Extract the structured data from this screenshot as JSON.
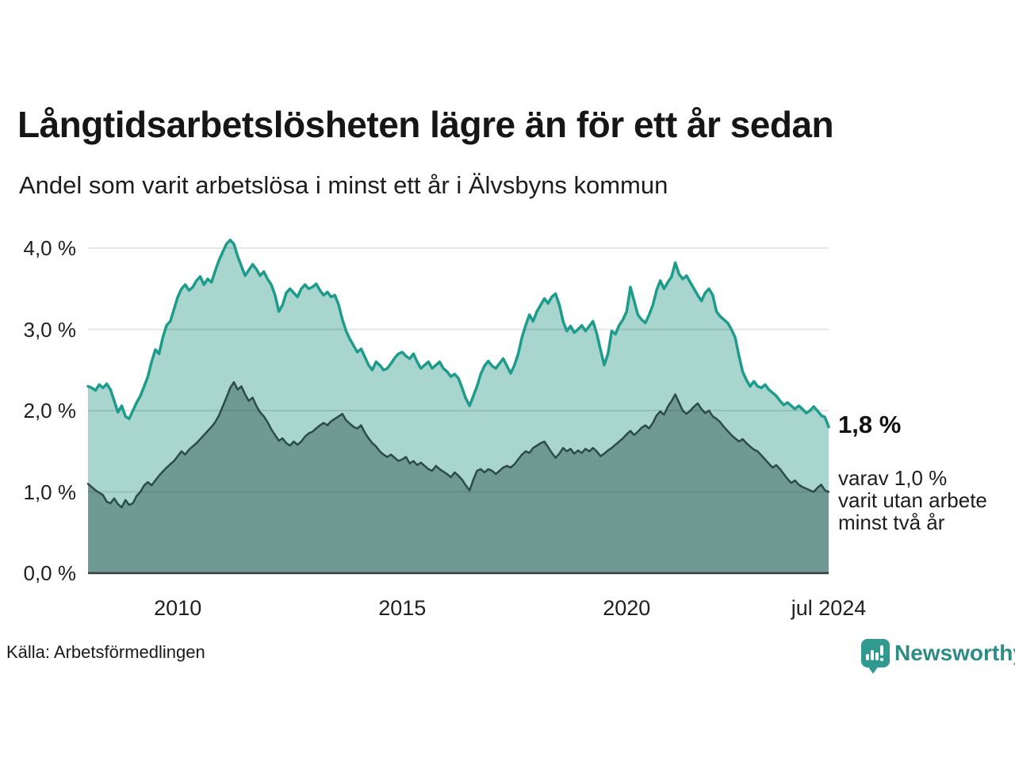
{
  "header": {
    "title": "Långtidsarbetslösheten lägre än för ett år sedan",
    "subtitle": "Andel som varit arbetslösa i minst ett år i Älvsbyns kommun"
  },
  "annotations": {
    "latest_total_label": "1,8 %",
    "latest_sub_lines": [
      "varav 1,0 %",
      "varit utan arbete",
      "minst två år"
    ]
  },
  "source": "Källa: Arbetsförmedlingen",
  "logo": {
    "text": "Newsworthy",
    "icon": "bar-chart-speech-bubble-icon",
    "icon_color": "#319a90",
    "text_color": "#2d8c85"
  },
  "colors": {
    "series_total_line": "#1e9c8b",
    "series_total_fill": "#a8d5ce",
    "series_two_years_line": "#2d4b47",
    "series_two_years_fill": "#6f9a94",
    "gridline": "rgba(0,0,0,0.10)",
    "axis_line": "#3b3b3b",
    "text": "#1a1a1a"
  },
  "chart_data": {
    "type": "area",
    "title": "Långtidsarbetslösheten lägre än för ett år sedan",
    "subtitle": "Andel som varit arbetslösa i minst ett år i Älvsbyns kommun",
    "xlabel": "",
    "ylabel": "",
    "x_unit": "year (monthly points)",
    "x_start": 2008.0,
    "x_end": 2024.5,
    "x_step": 0.0833333,
    "ylim": [
      0,
      4.3
    ],
    "grid": "horizontal",
    "legend_position": "none",
    "y_ticks": [
      {
        "value": 0,
        "label": "0,0 %"
      },
      {
        "value": 1,
        "label": "1,0 %"
      },
      {
        "value": 2,
        "label": "2,0 %"
      },
      {
        "value": 3,
        "label": "3,0 %"
      },
      {
        "value": 4,
        "label": "4,0 %"
      }
    ],
    "x_ticks": [
      {
        "value": 2010,
        "label": "2010"
      },
      {
        "value": 2015,
        "label": "2015"
      },
      {
        "value": 2020,
        "label": "2020"
      },
      {
        "value": 2024.5,
        "label": "jul 2024"
      }
    ],
    "series": [
      {
        "name": "Andel arbetslösa minst ett år",
        "latest_value": 1.8,
        "latest_label": "1,8 %",
        "line_color": "#1e9c8b",
        "fill_color": "#a8d5ce",
        "line_width": 3.5,
        "values": [
          2.3,
          2.28,
          2.25,
          2.32,
          2.28,
          2.33,
          2.26,
          2.12,
          1.98,
          2.06,
          1.93,
          1.9,
          2.0,
          2.1,
          2.18,
          2.3,
          2.42,
          2.6,
          2.75,
          2.7,
          2.9,
          3.05,
          3.1,
          3.25,
          3.4,
          3.5,
          3.55,
          3.48,
          3.52,
          3.6,
          3.65,
          3.55,
          3.62,
          3.58,
          3.72,
          3.85,
          3.95,
          4.05,
          4.1,
          4.05,
          3.9,
          3.78,
          3.66,
          3.73,
          3.8,
          3.74,
          3.66,
          3.71,
          3.62,
          3.55,
          3.42,
          3.22,
          3.3,
          3.45,
          3.5,
          3.45,
          3.4,
          3.5,
          3.55,
          3.5,
          3.52,
          3.56,
          3.48,
          3.42,
          3.46,
          3.4,
          3.42,
          3.3,
          3.12,
          2.98,
          2.88,
          2.8,
          2.72,
          2.76,
          2.66,
          2.56,
          2.5,
          2.6,
          2.56,
          2.5,
          2.52,
          2.58,
          2.65,
          2.7,
          2.72,
          2.67,
          2.64,
          2.7,
          2.6,
          2.52,
          2.56,
          2.6,
          2.52,
          2.56,
          2.6,
          2.52,
          2.48,
          2.42,
          2.45,
          2.4,
          2.28,
          2.15,
          2.06,
          2.18,
          2.3,
          2.45,
          2.55,
          2.61,
          2.55,
          2.52,
          2.58,
          2.64,
          2.55,
          2.46,
          2.56,
          2.7,
          2.9,
          3.05,
          3.18,
          3.1,
          3.22,
          3.3,
          3.38,
          3.32,
          3.4,
          3.44,
          3.3,
          3.1,
          2.98,
          3.04,
          2.96,
          3.0,
          3.05,
          2.98,
          3.04,
          3.1,
          2.95,
          2.75,
          2.56,
          2.7,
          2.98,
          2.94,
          3.05,
          3.12,
          3.22,
          3.52,
          3.35,
          3.18,
          3.12,
          3.08,
          3.18,
          3.3,
          3.48,
          3.6,
          3.5,
          3.58,
          3.65,
          3.82,
          3.68,
          3.62,
          3.66,
          3.58,
          3.5,
          3.42,
          3.35,
          3.45,
          3.5,
          3.42,
          3.22,
          3.16,
          3.12,
          3.08,
          3.0,
          2.9,
          2.68,
          2.48,
          2.38,
          2.3,
          2.36,
          2.3,
          2.28,
          2.32,
          2.26,
          2.22,
          2.18,
          2.12,
          2.07,
          2.1,
          2.06,
          2.02,
          2.06,
          2.02,
          1.97,
          2.0,
          2.05,
          2.0,
          1.94,
          1.92,
          1.8
        ]
      },
      {
        "name": "Andel som varit utan arbete minst två år",
        "latest_value": 1.0,
        "latest_label": "1,0 %",
        "line_color": "#2d4b47",
        "fill_color": "#6f9a94",
        "line_width": 2.5,
        "values": [
          1.1,
          1.06,
          1.02,
          0.99,
          0.96,
          0.88,
          0.86,
          0.92,
          0.85,
          0.81,
          0.9,
          0.84,
          0.86,
          0.95,
          1.0,
          1.08,
          1.12,
          1.08,
          1.14,
          1.2,
          1.25,
          1.3,
          1.34,
          1.38,
          1.44,
          1.5,
          1.46,
          1.52,
          1.56,
          1.6,
          1.65,
          1.7,
          1.75,
          1.8,
          1.86,
          1.94,
          2.05,
          2.16,
          2.28,
          2.35,
          2.26,
          2.3,
          2.2,
          2.12,
          2.16,
          2.06,
          1.98,
          1.93,
          1.86,
          1.77,
          1.7,
          1.63,
          1.66,
          1.6,
          1.57,
          1.62,
          1.58,
          1.62,
          1.68,
          1.72,
          1.74,
          1.78,
          1.82,
          1.85,
          1.82,
          1.87,
          1.9,
          1.93,
          1.96,
          1.88,
          1.84,
          1.8,
          1.78,
          1.82,
          1.73,
          1.66,
          1.6,
          1.56,
          1.5,
          1.46,
          1.43,
          1.46,
          1.42,
          1.38,
          1.4,
          1.43,
          1.35,
          1.38,
          1.33,
          1.36,
          1.32,
          1.28,
          1.26,
          1.32,
          1.28,
          1.25,
          1.22,
          1.18,
          1.24,
          1.2,
          1.15,
          1.08,
          1.02,
          1.15,
          1.26,
          1.28,
          1.24,
          1.28,
          1.26,
          1.22,
          1.26,
          1.3,
          1.32,
          1.3,
          1.34,
          1.4,
          1.46,
          1.5,
          1.48,
          1.54,
          1.57,
          1.6,
          1.62,
          1.55,
          1.48,
          1.42,
          1.47,
          1.54,
          1.5,
          1.53,
          1.47,
          1.51,
          1.48,
          1.53,
          1.5,
          1.54,
          1.5,
          1.44,
          1.47,
          1.51,
          1.54,
          1.58,
          1.62,
          1.66,
          1.71,
          1.75,
          1.7,
          1.74,
          1.79,
          1.82,
          1.78,
          1.85,
          1.94,
          1.99,
          1.95,
          2.05,
          2.12,
          2.2,
          2.1,
          2.0,
          1.96,
          2.0,
          2.05,
          2.09,
          2.02,
          1.97,
          2.0,
          1.93,
          1.9,
          1.86,
          1.8,
          1.75,
          1.7,
          1.66,
          1.62,
          1.65,
          1.6,
          1.56,
          1.52,
          1.5,
          1.45,
          1.4,
          1.35,
          1.3,
          1.33,
          1.28,
          1.22,
          1.16,
          1.11,
          1.14,
          1.09,
          1.06,
          1.04,
          1.02,
          1.0,
          1.05,
          1.09,
          1.02,
          1.0
        ]
      }
    ]
  }
}
